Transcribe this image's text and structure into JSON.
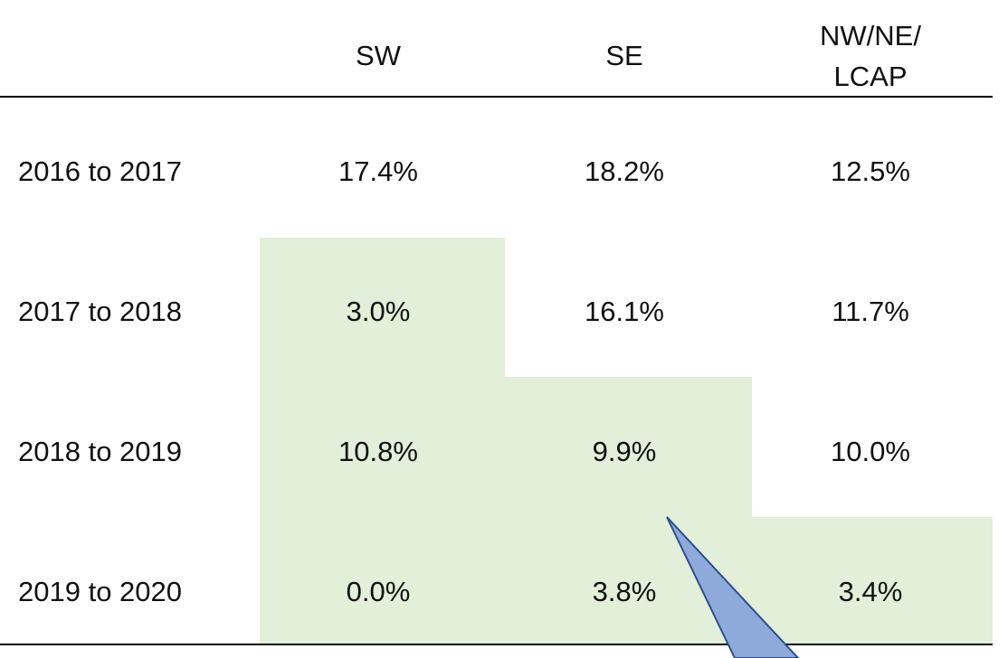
{
  "table": {
    "columns": [
      [
        "SW"
      ],
      [
        "SE"
      ],
      [
        "NW/NE/",
        "LCAP"
      ]
    ],
    "rows": [
      {
        "label": "2016 to 2017",
        "values": [
          "17.4%",
          "18.2%",
          "12.5%"
        ]
      },
      {
        "label": "2017 to 2018",
        "values": [
          "3.0%",
          "16.1%",
          "11.7%"
        ]
      },
      {
        "label": "2018 to 2019",
        "values": [
          "10.8%",
          "9.9%",
          "10.0%"
        ]
      },
      {
        "label": "2019 to 2020",
        "values": [
          "0.0%",
          "3.8%",
          "3.4%"
        ]
      }
    ]
  }
}
